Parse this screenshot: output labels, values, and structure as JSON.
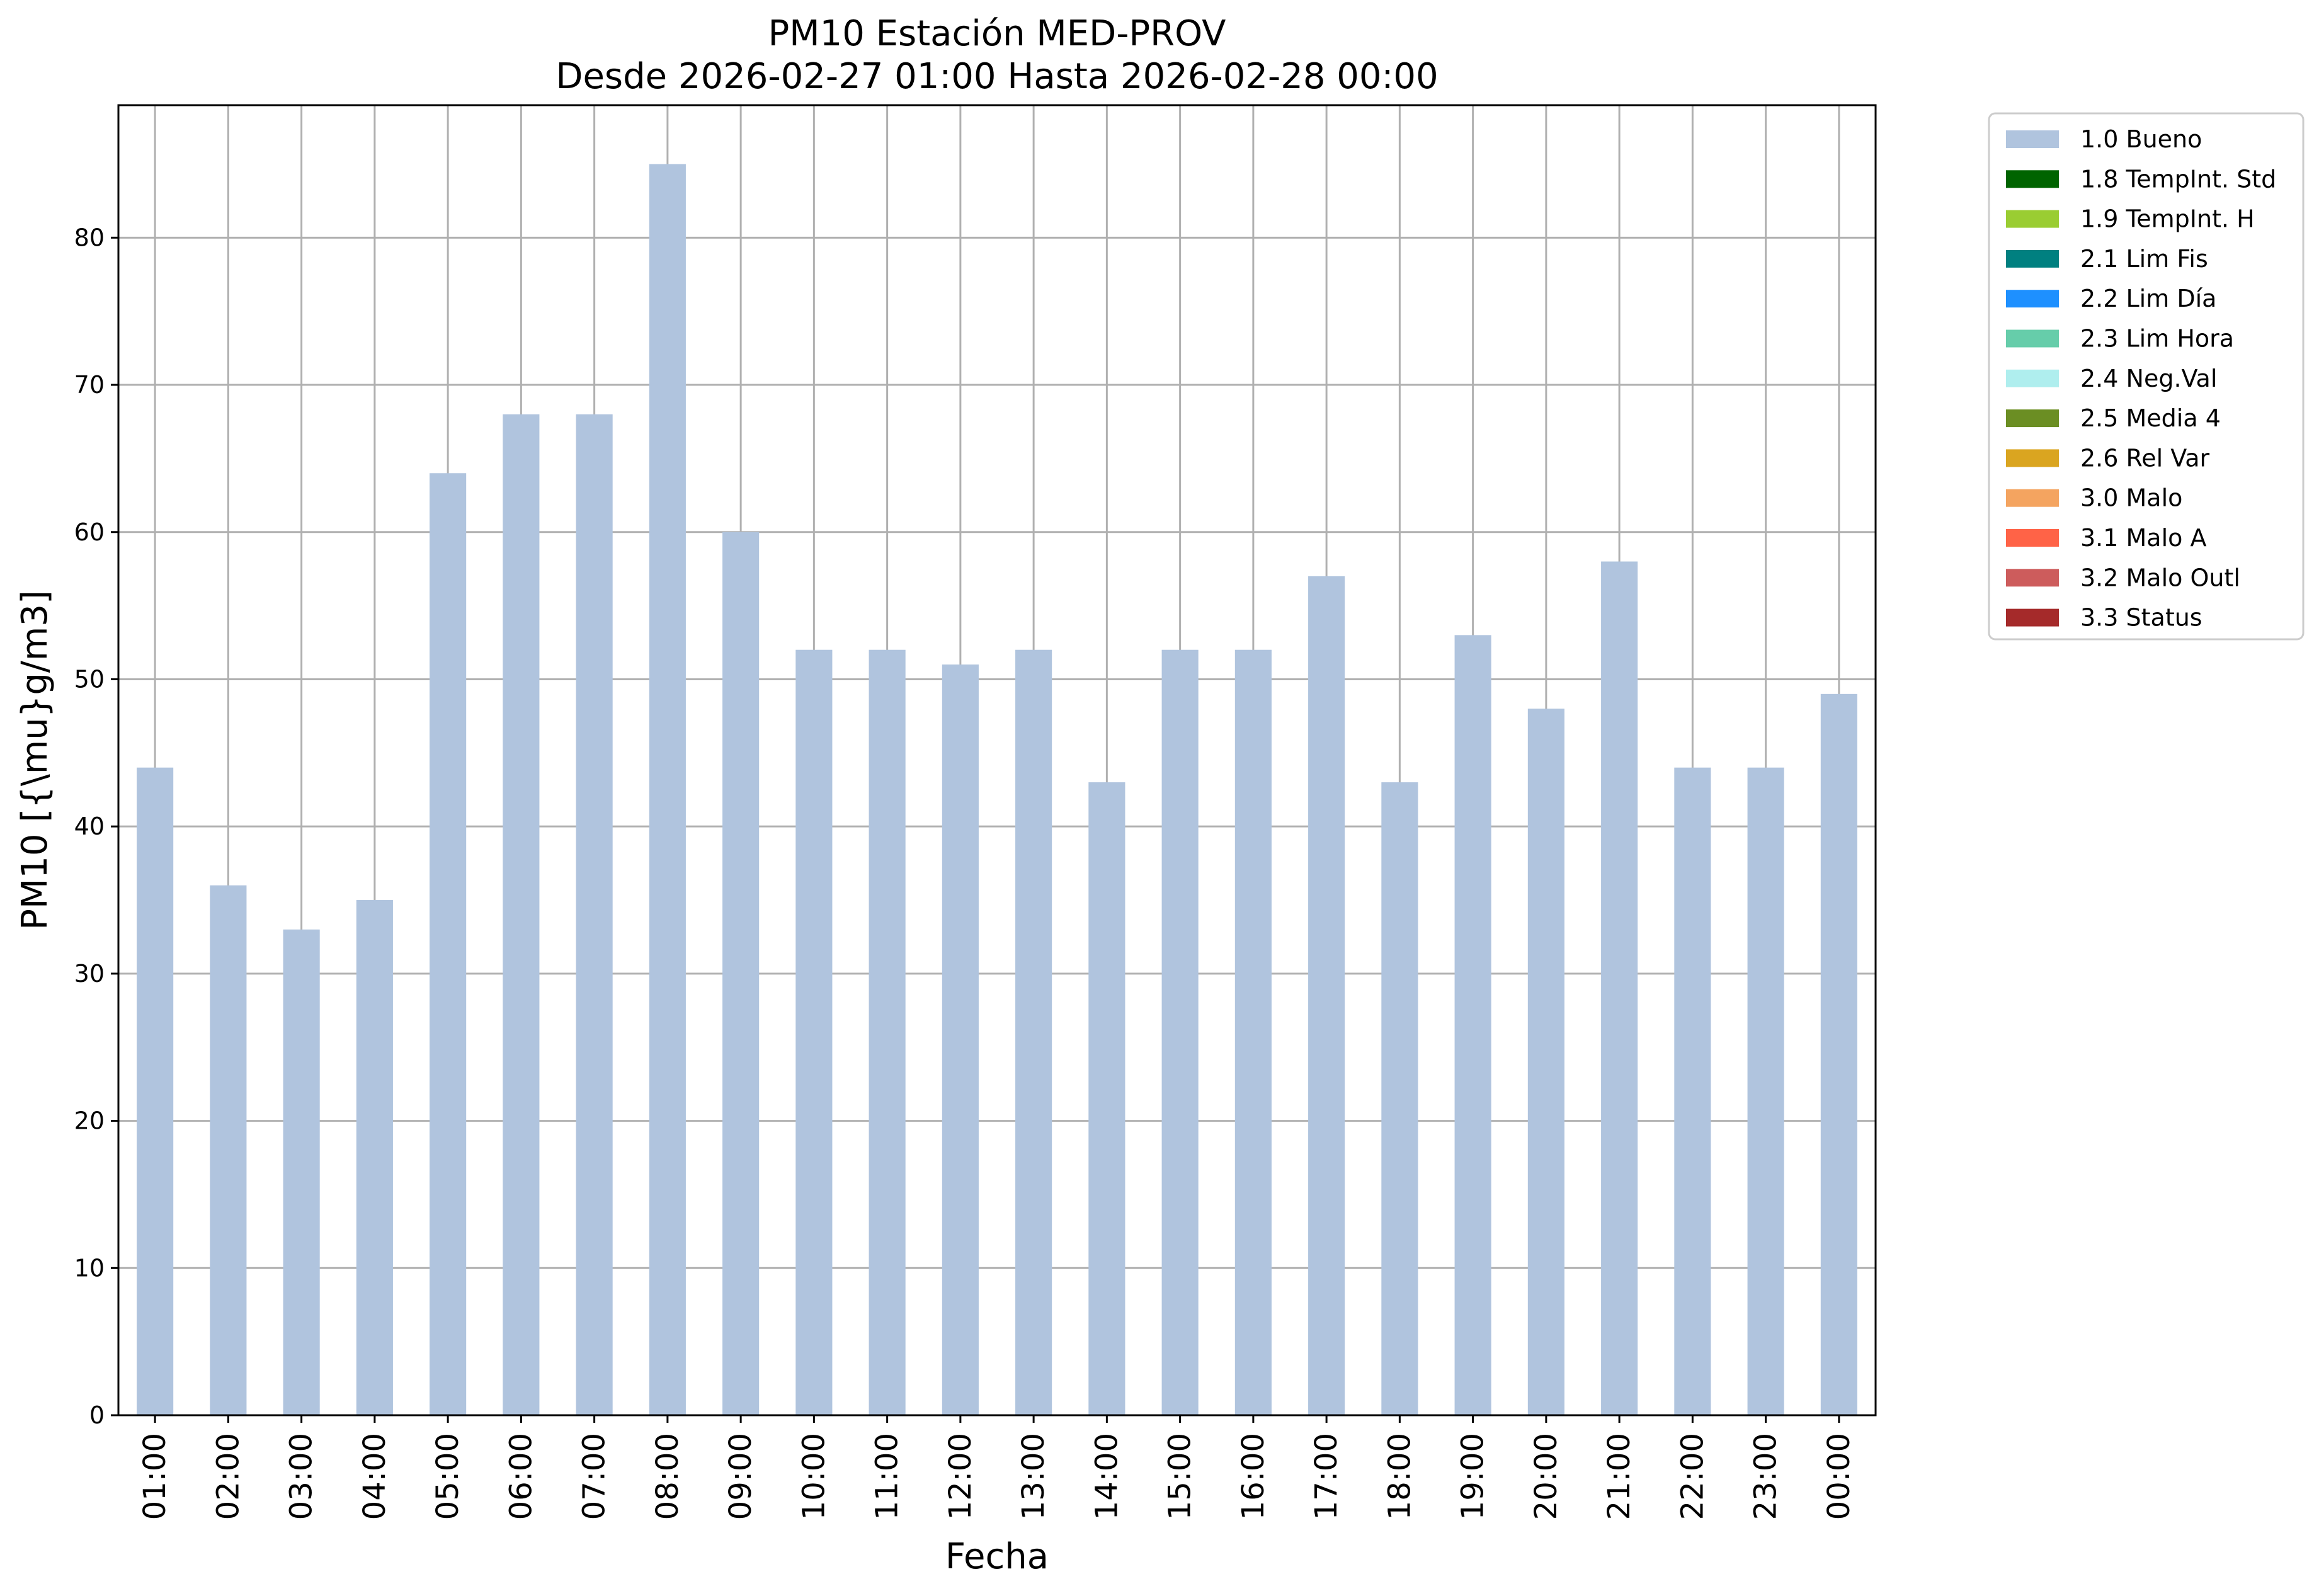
{
  "chart_data": {
    "type": "bar",
    "title": "PM10 Estación MED-PROV",
    "subtitle": "Desde 2026-02-27 01:00 Hasta 2026-02-28 00:00",
    "xlabel": "Fecha",
    "ylabel": "PM10 [{\\mu}g/m3]",
    "ylim": [
      0,
      89
    ],
    "yticks": [
      0,
      10,
      20,
      30,
      40,
      50,
      60,
      70,
      80
    ],
    "grid": true,
    "legend_position": "outside-right",
    "categories": [
      "01:00",
      "02:00",
      "03:00",
      "04:00",
      "05:00",
      "06:00",
      "07:00",
      "08:00",
      "09:00",
      "10:00",
      "11:00",
      "12:00",
      "13:00",
      "14:00",
      "15:00",
      "16:00",
      "17:00",
      "18:00",
      "19:00",
      "20:00",
      "21:00",
      "22:00",
      "23:00",
      "00:00"
    ],
    "series": [
      {
        "name": "1.0 Bueno",
        "color": "#b0c4de",
        "values": [
          44,
          36,
          33,
          35,
          64,
          68,
          68,
          85,
          60,
          52,
          52,
          51,
          52,
          43,
          52,
          52,
          57,
          43,
          53,
          48,
          58,
          44,
          44,
          49
        ]
      }
    ],
    "legend": [
      {
        "label": "1.0 Bueno",
        "color": "#b0c4de"
      },
      {
        "label": "1.8 TempInt. Std",
        "color": "#006400"
      },
      {
        "label": "1.9 TempInt. H",
        "color": "#9acd32"
      },
      {
        "label": "2.1 Lim Fis",
        "color": "#008080"
      },
      {
        "label": "2.2 Lim Día",
        "color": "#1e90ff"
      },
      {
        "label": "2.3 Lim Hora",
        "color": "#66cdaa"
      },
      {
        "label": "2.4 Neg.Val",
        "color": "#afeeee"
      },
      {
        "label": "2.5 Media 4",
        "color": "#6b8e23"
      },
      {
        "label": "2.6 Rel Var",
        "color": "#daa520"
      },
      {
        "label": "3.0 Malo",
        "color": "#f4a460"
      },
      {
        "label": "3.1 Malo A",
        "color": "#ff6347"
      },
      {
        "label": "3.2 Malo Outl",
        "color": "#cd5c5c"
      },
      {
        "label": "3.3 Status",
        "color": "#a52a2a"
      }
    ]
  }
}
